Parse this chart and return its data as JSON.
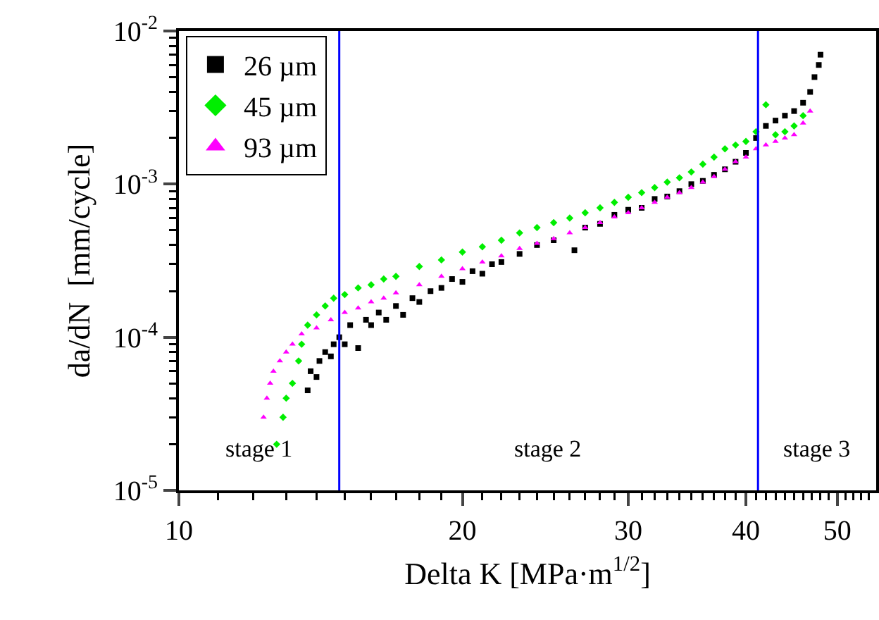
{
  "chart_data": {
    "type": "scatter",
    "xlabel": "Delta K [MPa·m$^{1/2}$]",
    "ylabel": "da/dN  [mm/cycle]",
    "log": "xy",
    "xlim": [
      10,
      55
    ],
    "xticks": [
      10,
      20,
      30,
      40,
      50
    ],
    "ylim": [
      1e-05,
      0.01
    ],
    "yticks": [
      {
        "value": 1e-05,
        "label": "10$^{-5}$"
      },
      {
        "value": 0.0001,
        "label": "10$^{-4}$"
      },
      {
        "value": 0.001,
        "label": "10$^{-3}$"
      },
      {
        "value": 0.01,
        "label": "10$^{-2}$"
      }
    ],
    "grid": false,
    "legend": "top left",
    "series": [
      {
        "name": "26 µm",
        "color": "#000000",
        "marker": "square",
        "x": [
          13.7,
          13.8,
          14.0,
          14.1,
          14.3,
          14.5,
          14.6,
          14.8,
          15.0,
          15.2,
          15.5,
          15.8,
          16.0,
          16.3,
          16.6,
          17.0,
          17.3,
          17.7,
          18.0,
          18.5,
          19.0,
          19.5,
          20.0,
          20.5,
          21.0,
          21.5,
          22.0,
          23.0,
          24.0,
          25.0,
          26.3,
          27.0,
          28.0,
          29.0,
          30.0,
          31.0,
          32.0,
          33.0,
          34.0,
          35.0,
          36.0,
          37.0,
          38.0,
          39.0,
          40.0,
          41.0,
          42.0,
          43.0,
          44.0,
          45.0,
          46.0,
          46.8,
          47.3,
          47.8,
          48.0
        ],
        "values": [
          4.5e-05,
          6e-05,
          5.5e-05,
          7e-05,
          8e-05,
          7.5e-05,
          9e-05,
          0.0001,
          9e-05,
          0.00012,
          8.5e-05,
          0.00013,
          0.00012,
          0.000145,
          0.00013,
          0.00016,
          0.00014,
          0.00018,
          0.00017,
          0.0002,
          0.00021,
          0.00024,
          0.00023,
          0.00027,
          0.00026,
          0.0003,
          0.00031,
          0.00035,
          0.0004,
          0.00043,
          0.00037,
          0.00052,
          0.00055,
          0.00063,
          0.00068,
          0.0007,
          0.0008,
          0.00083,
          0.0009,
          0.001,
          0.00105,
          0.00115,
          0.00125,
          0.0014,
          0.0016,
          0.002,
          0.0024,
          0.0026,
          0.0028,
          0.003,
          0.0034,
          0.004,
          0.005,
          0.006,
          0.007
        ]
      },
      {
        "name": "45 µm",
        "color": "#00ee00",
        "marker": "diamond",
        "x": [
          12.7,
          12.9,
          13.0,
          13.2,
          13.4,
          13.5,
          13.7,
          14.0,
          14.3,
          14.6,
          15.0,
          15.5,
          16.0,
          16.5,
          17.0,
          18.0,
          19.0,
          20.0,
          21.0,
          22.0,
          23.0,
          24.0,
          25.0,
          26.0,
          27.0,
          28.0,
          29.0,
          30.0,
          31.0,
          32.0,
          33.0,
          34.0,
          35.0,
          36.0,
          37.0,
          38.0,
          39.0,
          40.0,
          41.0,
          42.0,
          43.0,
          44.0,
          45.0,
          46.0
        ],
        "values": [
          2e-05,
          3e-05,
          4e-05,
          5e-05,
          7e-05,
          9e-05,
          0.00012,
          0.00014,
          0.00016,
          0.00018,
          0.00019,
          0.00021,
          0.00022,
          0.00024,
          0.00025,
          0.00029,
          0.00032,
          0.00036,
          0.00039,
          0.00043,
          0.00048,
          0.00052,
          0.00056,
          0.0006,
          0.00065,
          0.0007,
          0.00076,
          0.00082,
          0.00088,
          0.00095,
          0.00103,
          0.0011,
          0.0012,
          0.00135,
          0.0015,
          0.0017,
          0.0018,
          0.0019,
          0.0022,
          0.0033,
          0.0021,
          0.0022,
          0.0024,
          0.0028
        ]
      },
      {
        "name": "93 µm",
        "color": "#ff00ff",
        "marker": "triangle",
        "x": [
          12.3,
          12.4,
          12.5,
          12.6,
          12.8,
          13.0,
          13.2,
          13.5,
          14.0,
          14.5,
          15.0,
          15.5,
          16.0,
          16.5,
          17.0,
          18.0,
          19.0,
          20.0,
          21.0,
          22.0,
          23.0,
          24.0,
          25.0,
          26.0,
          27.0,
          28.0,
          29.0,
          30.0,
          31.0,
          32.0,
          33.0,
          34.0,
          35.0,
          36.0,
          37.0,
          38.0,
          39.0,
          40.0,
          41.0,
          42.0,
          43.0,
          44.0,
          45.0,
          46.0,
          46.8
        ],
        "values": [
          3e-05,
          4e-05,
          5e-05,
          6e-05,
          7e-05,
          8e-05,
          9e-05,
          0.000105,
          0.000115,
          0.00013,
          0.000145,
          0.000155,
          0.00017,
          0.00018,
          0.000195,
          0.00022,
          0.00025,
          0.00028,
          0.00031,
          0.00034,
          0.00038,
          0.00041,
          0.00044,
          0.00048,
          0.00052,
          0.00056,
          0.00061,
          0.00065,
          0.0007,
          0.00076,
          0.00082,
          0.00088,
          0.00095,
          0.00103,
          0.00112,
          0.00125,
          0.0014,
          0.0015,
          0.0017,
          0.0018,
          0.0019,
          0.002,
          0.0021,
          0.0025,
          0.003
        ]
      }
    ],
    "ref_lines": [
      {
        "axis": "x",
        "value": 14.8,
        "color": "#0000ff"
      },
      {
        "axis": "x",
        "value": 41.2,
        "color": "#0000ff"
      }
    ],
    "annotations": [
      "stage 1",
      "stage 2",
      "stage 3"
    ]
  }
}
